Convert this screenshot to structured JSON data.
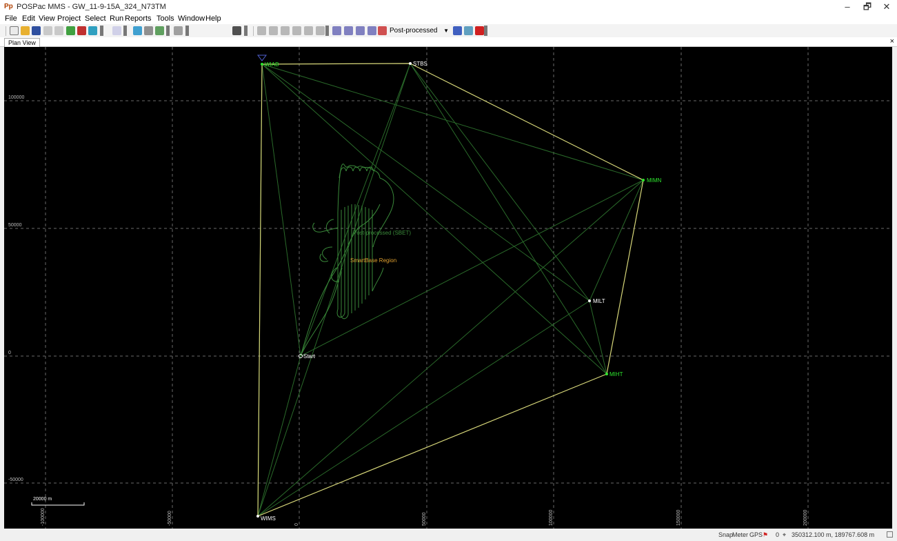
{
  "window": {
    "icon": "Pp",
    "title": "POSPac MMS - GW_11-9-15A_324_N73TM",
    "min": "–",
    "restore": "🗗",
    "close": "✕"
  },
  "menu": [
    "File",
    "Edit",
    "View",
    "Project",
    "Select",
    "Run",
    "Reports",
    "Tools",
    "Window",
    "Help"
  ],
  "toolbar": {
    "mode": "Post-processed"
  },
  "tabs": {
    "plan_view": "Plan View",
    "close": "×"
  },
  "plot": {
    "y_ticks": [
      "100000",
      "50000",
      "0",
      "-50000"
    ],
    "x_ticks": [
      "-100000",
      "-50000",
      "0",
      "50000",
      "100000",
      "150000",
      "200000"
    ],
    "scale_label": "20000 m",
    "stations": [
      {
        "name": "WIAB",
        "color": "#2ee82e"
      },
      {
        "name": "STBS",
        "color": "#ffffff"
      },
      {
        "name": "MIMN",
        "color": "#2ee82e"
      },
      {
        "name": "MILT",
        "color": "#ffffff"
      },
      {
        "name": "MIHT",
        "color": "#2ee82e"
      },
      {
        "name": "WIMS",
        "color": "#ffffff"
      }
    ],
    "start_label": "Start",
    "trajectory_label": "Post-processed (SBET)",
    "region_label": "SmartBase Region",
    "colors": {
      "background": "#000000",
      "boundary": "#d8d87a",
      "baseline": "#2a6a2a",
      "trajectory": "#3a8a3a",
      "region_text": "#e0a030",
      "grid": "#6a6a6a"
    }
  },
  "status": {
    "snap": "Snap",
    "meter": "Meter",
    "gps": "GPS",
    "count": "0",
    "coords": "350312.100 m, 189767.608 m"
  }
}
